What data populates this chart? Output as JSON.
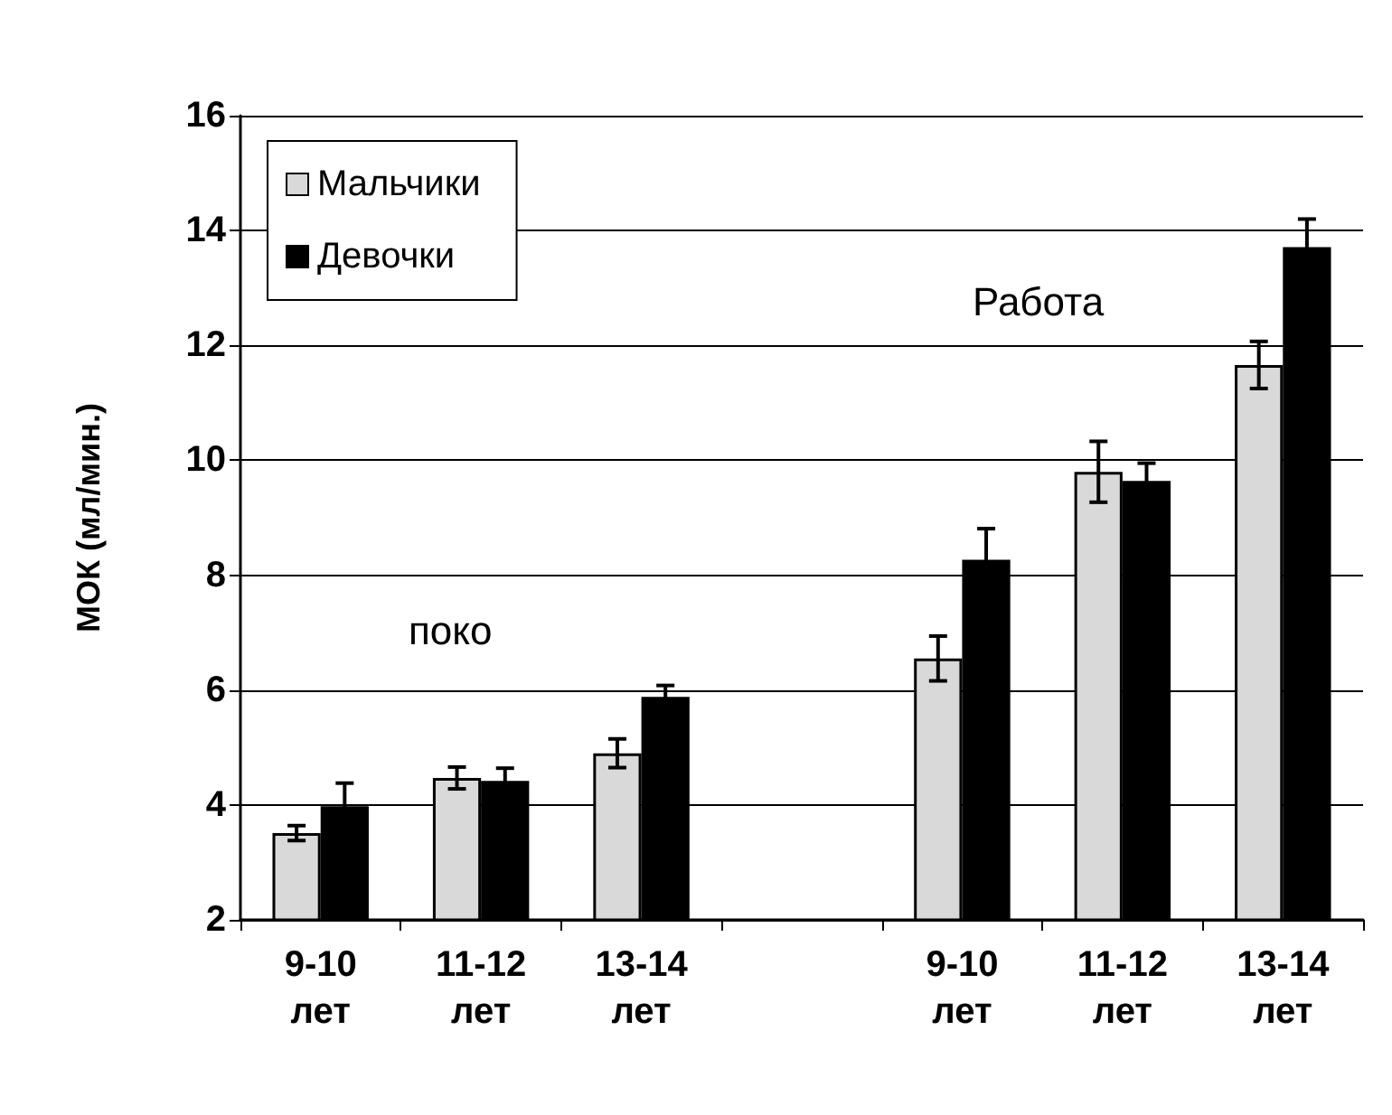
{
  "chart_data": {
    "type": "bar",
    "ylabel": "МОК (мл/мин.)",
    "categories": [
      "9-10\nлет",
      "11-12\nлет",
      "13-14\nлет",
      null,
      "9-10\nлет",
      "11-12\nлет",
      "13-14\nлет"
    ],
    "series": [
      {
        "name": "Мальчики",
        "color": "#d9d9d9",
        "values": [
          3.51,
          4.47,
          4.9,
          null,
          6.55,
          9.8,
          11.66
        ],
        "errors": [
          0.13,
          0.19,
          0.25,
          null,
          0.39,
          0.53,
          0.41
        ]
      },
      {
        "name": "Девочки",
        "color": "#000000",
        "values": [
          3.98,
          4.42,
          5.88,
          null,
          8.27,
          9.64,
          13.71
        ],
        "errors": [
          0.4,
          0.22,
          0.2,
          null,
          0.54,
          0.31,
          0.49
        ]
      }
    ],
    "ylim": [
      2,
      16
    ],
    "yticks": [
      2,
      4,
      6,
      8,
      10,
      12,
      14,
      16
    ],
    "grid": "y",
    "legend": "top left",
    "annotations": [
      "поко",
      "Работа"
    ]
  }
}
